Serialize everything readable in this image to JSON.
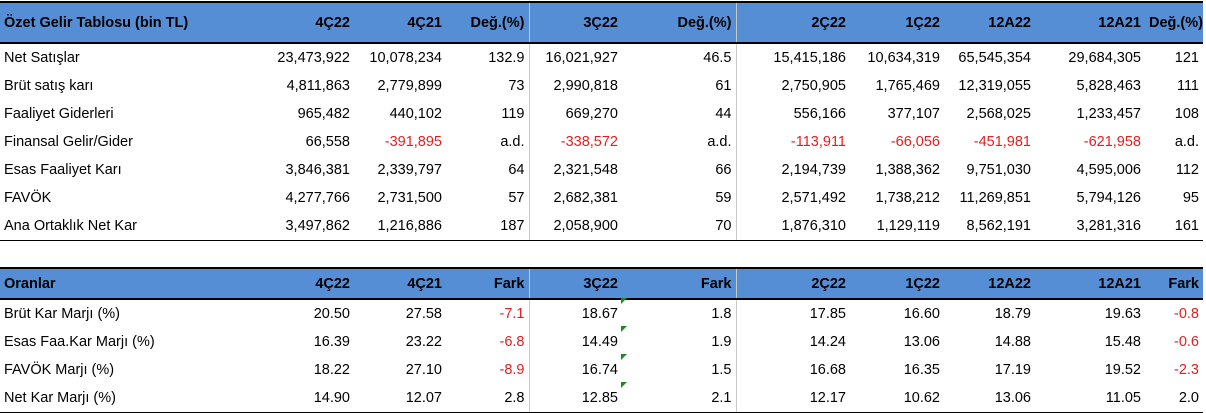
{
  "income": {
    "headers": [
      "Özet Gelir Tablosu (bin TL)",
      "4Ç22",
      "4Ç21",
      "Değ.(%)",
      "3Ç22",
      "Değ.(%)",
      "2Ç22",
      "1Ç22",
      "12A22",
      "12A21",
      "Değ.(%)"
    ],
    "rows": [
      [
        "Net Satışlar",
        "23,473,922",
        "10,078,234",
        "132.9",
        "16,021,927",
        "46.5",
        "15,415,186",
        "10,634,319",
        "65,545,354",
        "29,684,305",
        "121"
      ],
      [
        "Brüt satış karı",
        "4,811,863",
        "2,779,899",
        "73",
        "2,990,818",
        "61",
        "2,750,905",
        "1,765,469",
        "12,319,055",
        "5,828,463",
        "111"
      ],
      [
        "Faaliyet Giderleri",
        "965,482",
        "440,102",
        "119",
        "669,270",
        "44",
        "556,166",
        "377,107",
        "2,568,025",
        "1,233,457",
        "108"
      ],
      [
        "Finansal Gelir/Gider",
        "66,558",
        "-391,895",
        "a.d.",
        "-338,572",
        "a.d.",
        "-113,911",
        "-66,056",
        "-451,981",
        "-621,958",
        "a.d."
      ],
      [
        "Esas Faaliyet Karı",
        "3,846,381",
        "2,339,797",
        "64",
        "2,321,548",
        "66",
        "2,194,739",
        "1,388,362",
        "9,751,030",
        "4,595,006",
        "112"
      ],
      [
        "FAVÖK",
        "4,277,766",
        "2,731,500",
        "57",
        "2,682,381",
        "59",
        "2,571,492",
        "1,738,212",
        "11,269,851",
        "5,794,126",
        "95"
      ],
      [
        "Ana Ortaklık Net Kar",
        "3,497,862",
        "1,216,886",
        "187",
        "2,058,900",
        "70",
        "1,876,310",
        "1,129,119",
        "8,562,191",
        "3,281,316",
        "161"
      ]
    ]
  },
  "ratios": {
    "headers": [
      "Oranlar",
      "4Ç22",
      "4Ç21",
      "Fark",
      "3Ç22",
      "Fark",
      "2Ç22",
      "1Ç22",
      "12A22",
      "12A21",
      "Fark"
    ],
    "rows": [
      [
        "Brüt Kar Marjı (%)",
        "20.50",
        "27.58",
        "-7.1",
        "18.67",
        "1.8",
        "17.85",
        "16.60",
        "18.79",
        "19.63",
        "-0.8"
      ],
      [
        "Esas Faa.Kar Marjı (%)",
        "16.39",
        "23.22",
        "-6.8",
        "14.49",
        "1.9",
        "14.24",
        "13.06",
        "14.88",
        "15.48",
        "-0.6"
      ],
      [
        "FAVÖK Marjı (%)",
        "18.22",
        "27.10",
        "-8.9",
        "16.74",
        "1.5",
        "16.68",
        "16.35",
        "17.19",
        "19.52",
        "-2.3"
      ],
      [
        "Net Kar Marjı (%)",
        "14.90",
        "12.07",
        "2.8",
        "12.85",
        "2.1",
        "12.17",
        "10.62",
        "13.06",
        "11.05",
        "2.0"
      ]
    ]
  },
  "colors": {
    "header_bg": "#558ed5",
    "negative": "#e02020",
    "comment_marker": "#1e8a1e"
  }
}
